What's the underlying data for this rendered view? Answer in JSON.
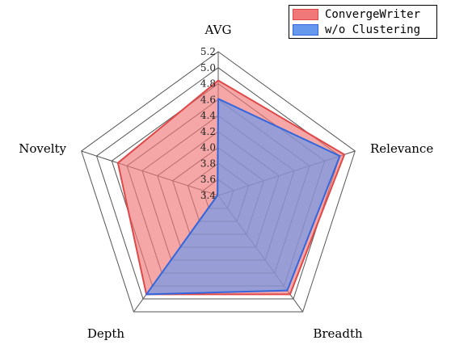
{
  "chart_data": {
    "type": "radar",
    "axes": [
      "AVG",
      "Relevance",
      "Breadth",
      "Depth",
      "Novelty"
    ],
    "rmin": 3.4,
    "rmax": 5.2,
    "tick_values": [
      3.4,
      3.6,
      3.8,
      4.0,
      4.2,
      4.4,
      4.6,
      4.8,
      5.0,
      5.2
    ],
    "tick_labels": [
      "3.4",
      "3.6",
      "3.8",
      "4.0",
      "4.2",
      "4.4",
      "4.6",
      "4.8",
      "5.0",
      "5.2"
    ],
    "series": [
      {
        "name": "ConvergeWriter",
        "values": [
          4.84,
          5.06,
          4.93,
          4.93,
          4.72
        ],
        "fill": "#f07878",
        "stroke": "#e04848"
      },
      {
        "name": "w/o Clustering",
        "values": [
          4.61,
          5.0,
          4.87,
          4.93,
          3.41
        ],
        "fill": "#6699ee",
        "stroke": "#3366dd"
      }
    ],
    "grid_color": "#555555",
    "legend_position": "top-right"
  }
}
